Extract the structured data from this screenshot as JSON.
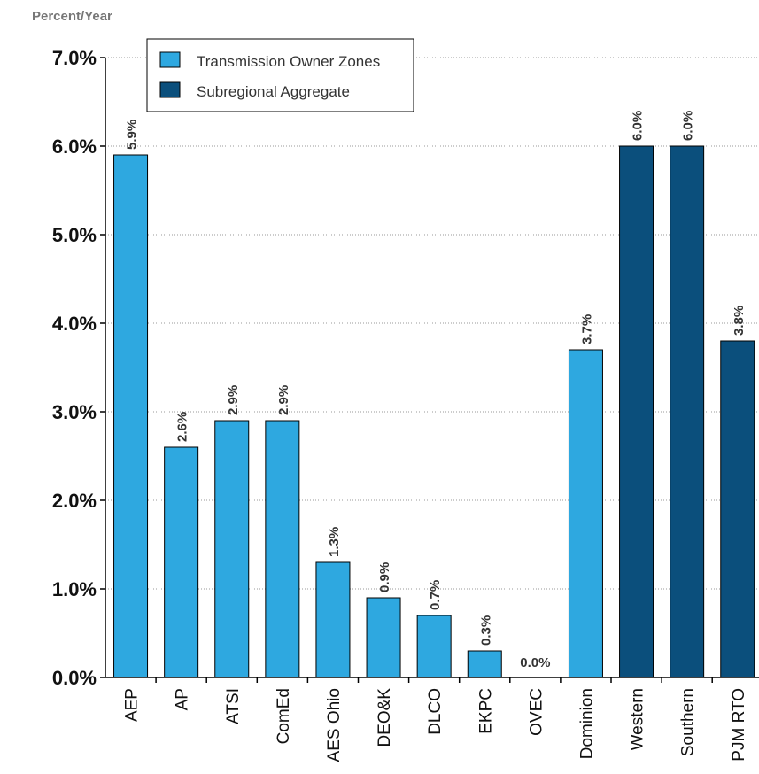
{
  "chart_data": {
    "type": "bar",
    "unit_label": "Percent/Year",
    "categories": [
      "AEP",
      "AP",
      "ATSI",
      "ComEd",
      "AES Ohio",
      "DEO&K",
      "DLCO",
      "EKPC",
      "OVEC",
      "Dominion",
      "Western",
      "Southern",
      "PJM RTO"
    ],
    "values": [
      5.9,
      2.6,
      2.9,
      2.9,
      1.3,
      0.9,
      0.7,
      0.3,
      0.0,
      3.7,
      6.0,
      6.0,
      3.8
    ],
    "value_labels": [
      "5.9%",
      "2.6%",
      "2.9%",
      "2.9%",
      "1.3%",
      "0.9%",
      "0.7%",
      "0.3%",
      "0.0%",
      "3.7%",
      "6.0%",
      "6.0%",
      "3.8%"
    ],
    "groups": [
      "zone",
      "zone",
      "zone",
      "zone",
      "zone",
      "zone",
      "zone",
      "zone",
      "zone",
      "zone",
      "aggregate",
      "aggregate",
      "aggregate"
    ],
    "legend": [
      {
        "key": "zone",
        "label": "Transmission Owner Zones",
        "color": "#2EA8E0"
      },
      {
        "key": "aggregate",
        "label": "Subregional Aggregate",
        "color": "#0B4F7C"
      }
    ],
    "legend_position": "top-left",
    "yticks": [
      0,
      1,
      2,
      3,
      4,
      5,
      6,
      7
    ],
    "ytick_labels": [
      "0.0%",
      "1.0%",
      "2.0%",
      "3.0%",
      "4.0%",
      "5.0%",
      "6.0%",
      "7.0%"
    ],
    "ylim": [
      0,
      7
    ],
    "grid": "horizontal dotted",
    "title": "",
    "xlabel": "",
    "ylabel": ""
  }
}
